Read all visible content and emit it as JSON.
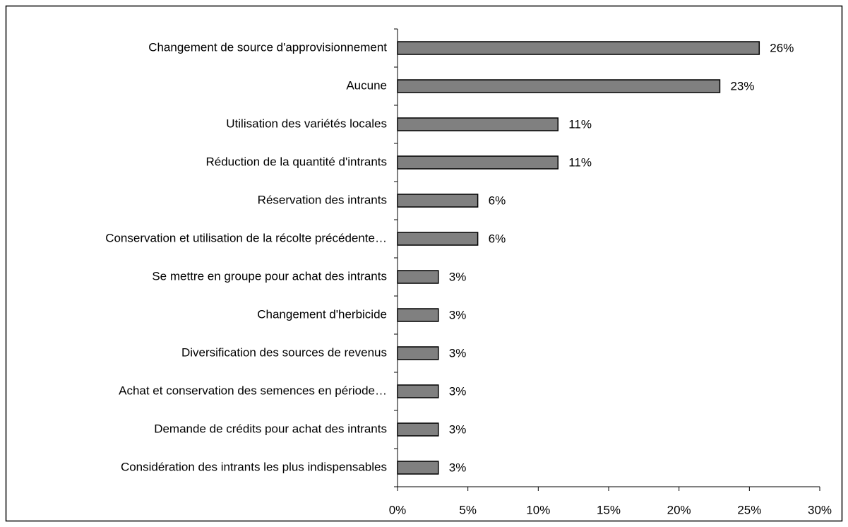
{
  "chart_data": {
    "type": "hbar",
    "categories": [
      "Changement de source d'approvisionnement",
      "Aucune",
      "Utilisation des variétés locales",
      "Réduction de la quantité d'intrants",
      "Réservation des intrants",
      "Conservation et utilisation de la récolte précédente…",
      "Se mettre en groupe pour achat des intrants",
      "Changement d'herbicide",
      "Diversification des sources de revenus",
      "Achat et conservation des semences en période…",
      "Demande de crédits pour achat des intrants",
      "Considération des intrants les plus indispensables"
    ],
    "values": [
      25.7,
      22.9,
      11.4,
      11.4,
      5.7,
      5.7,
      2.9,
      2.9,
      2.9,
      2.9,
      2.9,
      2.9
    ],
    "value_labels": [
      "26%",
      "23%",
      "11%",
      "11%",
      "6%",
      "6%",
      "3%",
      "3%",
      "3%",
      "3%",
      "3%",
      "3%"
    ],
    "color": "#808080",
    "xlim": [
      0,
      30
    ],
    "xticks": [
      {
        "value": 0,
        "label": "0%"
      },
      {
        "value": 5,
        "label": "5%"
      },
      {
        "value": 10,
        "label": "10%"
      },
      {
        "value": 15,
        "label": "15%"
      },
      {
        "value": 20,
        "label": "20%"
      },
      {
        "value": 25,
        "label": "25%"
      },
      {
        "value": 30,
        "label": "30%"
      }
    ],
    "grid": false
  }
}
